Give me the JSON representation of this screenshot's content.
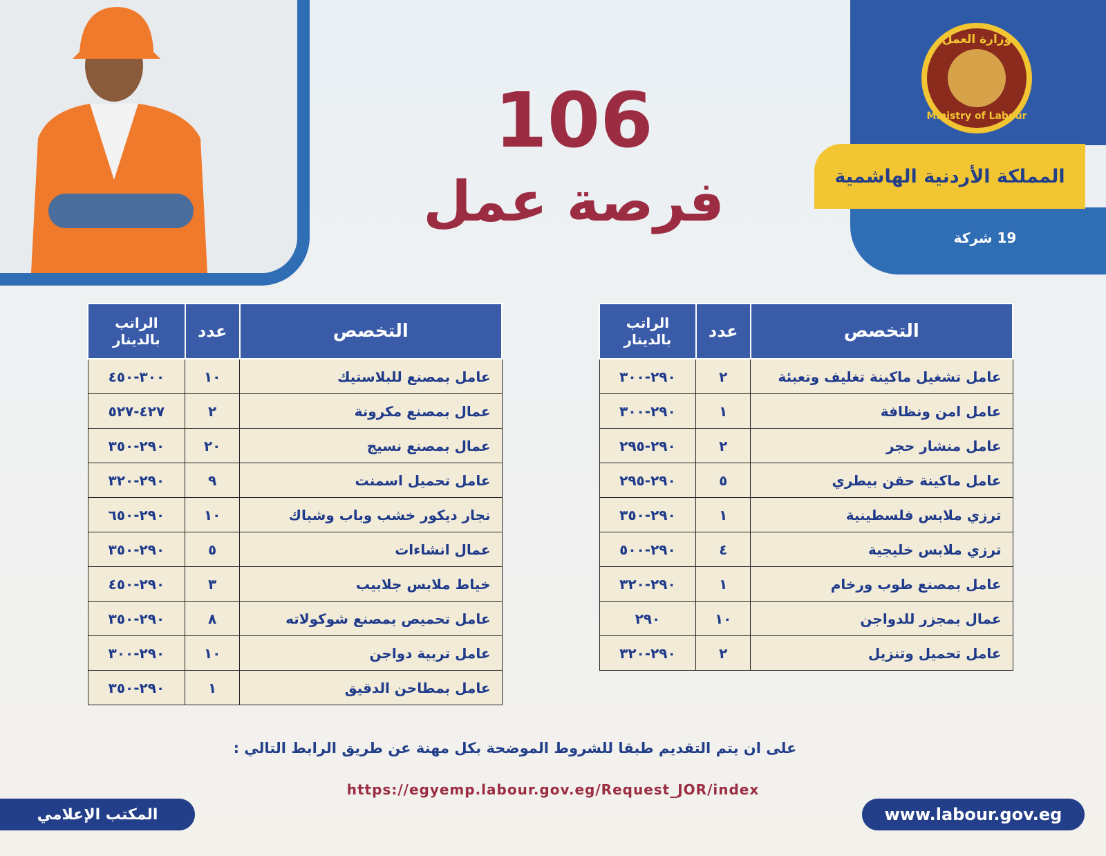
{
  "header": {
    "ministry_ar": "وزارة العمل",
    "ministry_en": "Ministry of Labour",
    "country": "المملكة الأردنية الهاشمية",
    "companies": "19 شركة",
    "count": "106",
    "subtitle": "فرصة عمل"
  },
  "tables": [
    {
      "columns": [
        "التخصص",
        "عدد",
        "الراتب بالدينار"
      ],
      "rows": [
        [
          "عامل تشغيل ماكينة تغليف وتعبئة",
          "٢",
          "٣٠٠-٢٩٠"
        ],
        [
          "عامل امن ونظافة",
          "١",
          "٣٠٠-٢٩٠"
        ],
        [
          "عامل منشار حجر",
          "٢",
          "٢٩٥-٢٩٠"
        ],
        [
          "عامل ماكينة حقن بيطري",
          "٥",
          "٢٩٥-٢٩٠"
        ],
        [
          "ترزي ملابس فلسطينية",
          "١",
          "٣٥٠-٢٩٠"
        ],
        [
          "ترزي ملابس خليجية",
          "٤",
          "٥٠٠-٢٩٠"
        ],
        [
          "عامل بمصنع طوب ورخام",
          "١",
          "٣٢٠-٢٩٠"
        ],
        [
          "عمال بمجزر للدواجن",
          "١٠",
          "٢٩٠"
        ],
        [
          "عامل تحميل وتنزيل",
          "٢",
          "٣٢٠-٢٩٠"
        ]
      ]
    },
    {
      "columns": [
        "التخصص",
        "عدد",
        "الراتب بالدينار"
      ],
      "rows": [
        [
          "عامل بمصنع للبلاستيك",
          "١٠",
          "٤٥٠-٣٠٠"
        ],
        [
          "عمال بمصنع مكرونة",
          "٢",
          "٥٢٧-٤٢٧"
        ],
        [
          "عمال بمصنع نسيج",
          "٢٠",
          "٣٥٠-٢٩٠"
        ],
        [
          "عامل تحميل اسمنت",
          "٩",
          "٣٢٠-٢٩٠"
        ],
        [
          "نجار ديكور خشب وباب وشباك",
          "١٠",
          "٦٥٠-٢٩٠"
        ],
        [
          "عمال انشاءات",
          "٥",
          "٣٥٠-٢٩٠"
        ],
        [
          "خياط ملابس جلابيب",
          "٣",
          "٤٥٠-٢٩٠"
        ],
        [
          "عامل تحميص بمصنع شوكولاته",
          "٨",
          "٣٥٠-٢٩٠"
        ],
        [
          "عامل تربية دواجن",
          "١٠",
          "٣٠٠-٢٩٠"
        ],
        [
          "عامل بمطاحن الدقيق",
          "١",
          "٣٥٠-٢٩٠"
        ]
      ]
    }
  ],
  "footer": {
    "note": "على ان يتم التقديم طبقا للشروط الموضحة بكل مهنة عن طريق الرابط التالي :",
    "url": "https://egyemp.labour.gov.eg/Request_JOR/index",
    "website": "www.labour.gov.eg",
    "office": "المكتب الإعلامي"
  }
}
